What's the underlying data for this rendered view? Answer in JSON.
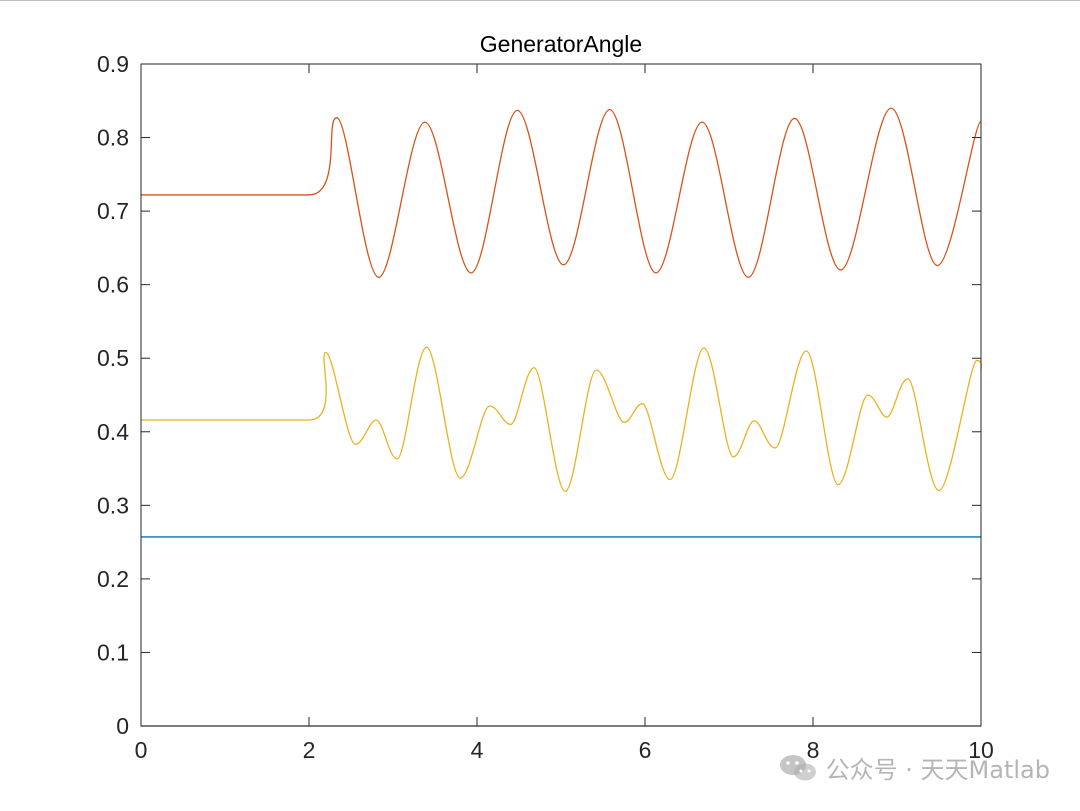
{
  "chart_data": {
    "type": "line",
    "title": "GeneratorAngle",
    "xlabel": "",
    "ylabel": "",
    "xlim": [
      0,
      10
    ],
    "ylim": [
      0,
      0.9
    ],
    "xticks": [
      0,
      2,
      4,
      6,
      8,
      10
    ],
    "yticks": [
      0,
      0.1,
      0.2,
      0.3,
      0.4,
      0.5,
      0.6,
      0.7,
      0.8,
      0.9
    ],
    "xtick_labels": [
      "0",
      "2",
      "4",
      "6",
      "8",
      "10"
    ],
    "ytick_labels": [
      "0",
      "0.1",
      "0.2",
      "0.3",
      "0.4",
      "0.5",
      "0.6",
      "0.7",
      "0.8",
      "0.9"
    ],
    "grid": false,
    "legend": "none",
    "series": [
      {
        "color": "#0072BD",
        "x": [
          0,
          10
        ],
        "y": [
          0.257,
          0.257
        ]
      },
      {
        "color": "#D95319",
        "x": [
          0,
          2.0,
          2.33,
          2.83,
          3.38,
          3.93,
          4.48,
          5.03,
          5.58,
          6.13,
          6.68,
          7.23,
          7.78,
          8.33,
          8.93,
          9.48,
          10.0
        ],
        "y": [
          0.722,
          0.722,
          0.827,
          0.61,
          0.821,
          0.616,
          0.837,
          0.627,
          0.838,
          0.616,
          0.821,
          0.61,
          0.826,
          0.62,
          0.84,
          0.626,
          0.822
        ]
      },
      {
        "color": "#EDB120",
        "x": [
          0,
          2.0,
          2.2,
          2.55,
          2.8,
          3.05,
          3.4,
          3.8,
          4.15,
          4.4,
          4.68,
          5.05,
          5.42,
          5.75,
          5.97,
          6.3,
          6.7,
          7.05,
          7.3,
          7.55,
          7.92,
          8.3,
          8.65,
          8.88,
          9.13,
          9.5,
          9.95,
          10.0
        ],
        "y": [
          0.416,
          0.416,
          0.508,
          0.383,
          0.416,
          0.363,
          0.515,
          0.337,
          0.435,
          0.41,
          0.487,
          0.319,
          0.484,
          0.413,
          0.438,
          0.335,
          0.514,
          0.366,
          0.415,
          0.378,
          0.51,
          0.328,
          0.45,
          0.42,
          0.472,
          0.32,
          0.497,
          0.483
        ]
      },
      {
        "color": "#7E2F8E",
        "x": [
          0,
          10
        ],
        "y": [
          0.0,
          0.0
        ]
      }
    ]
  },
  "watermark": {
    "text": "公众号 · 天天Matlab",
    "icon": "wechat-icon"
  }
}
